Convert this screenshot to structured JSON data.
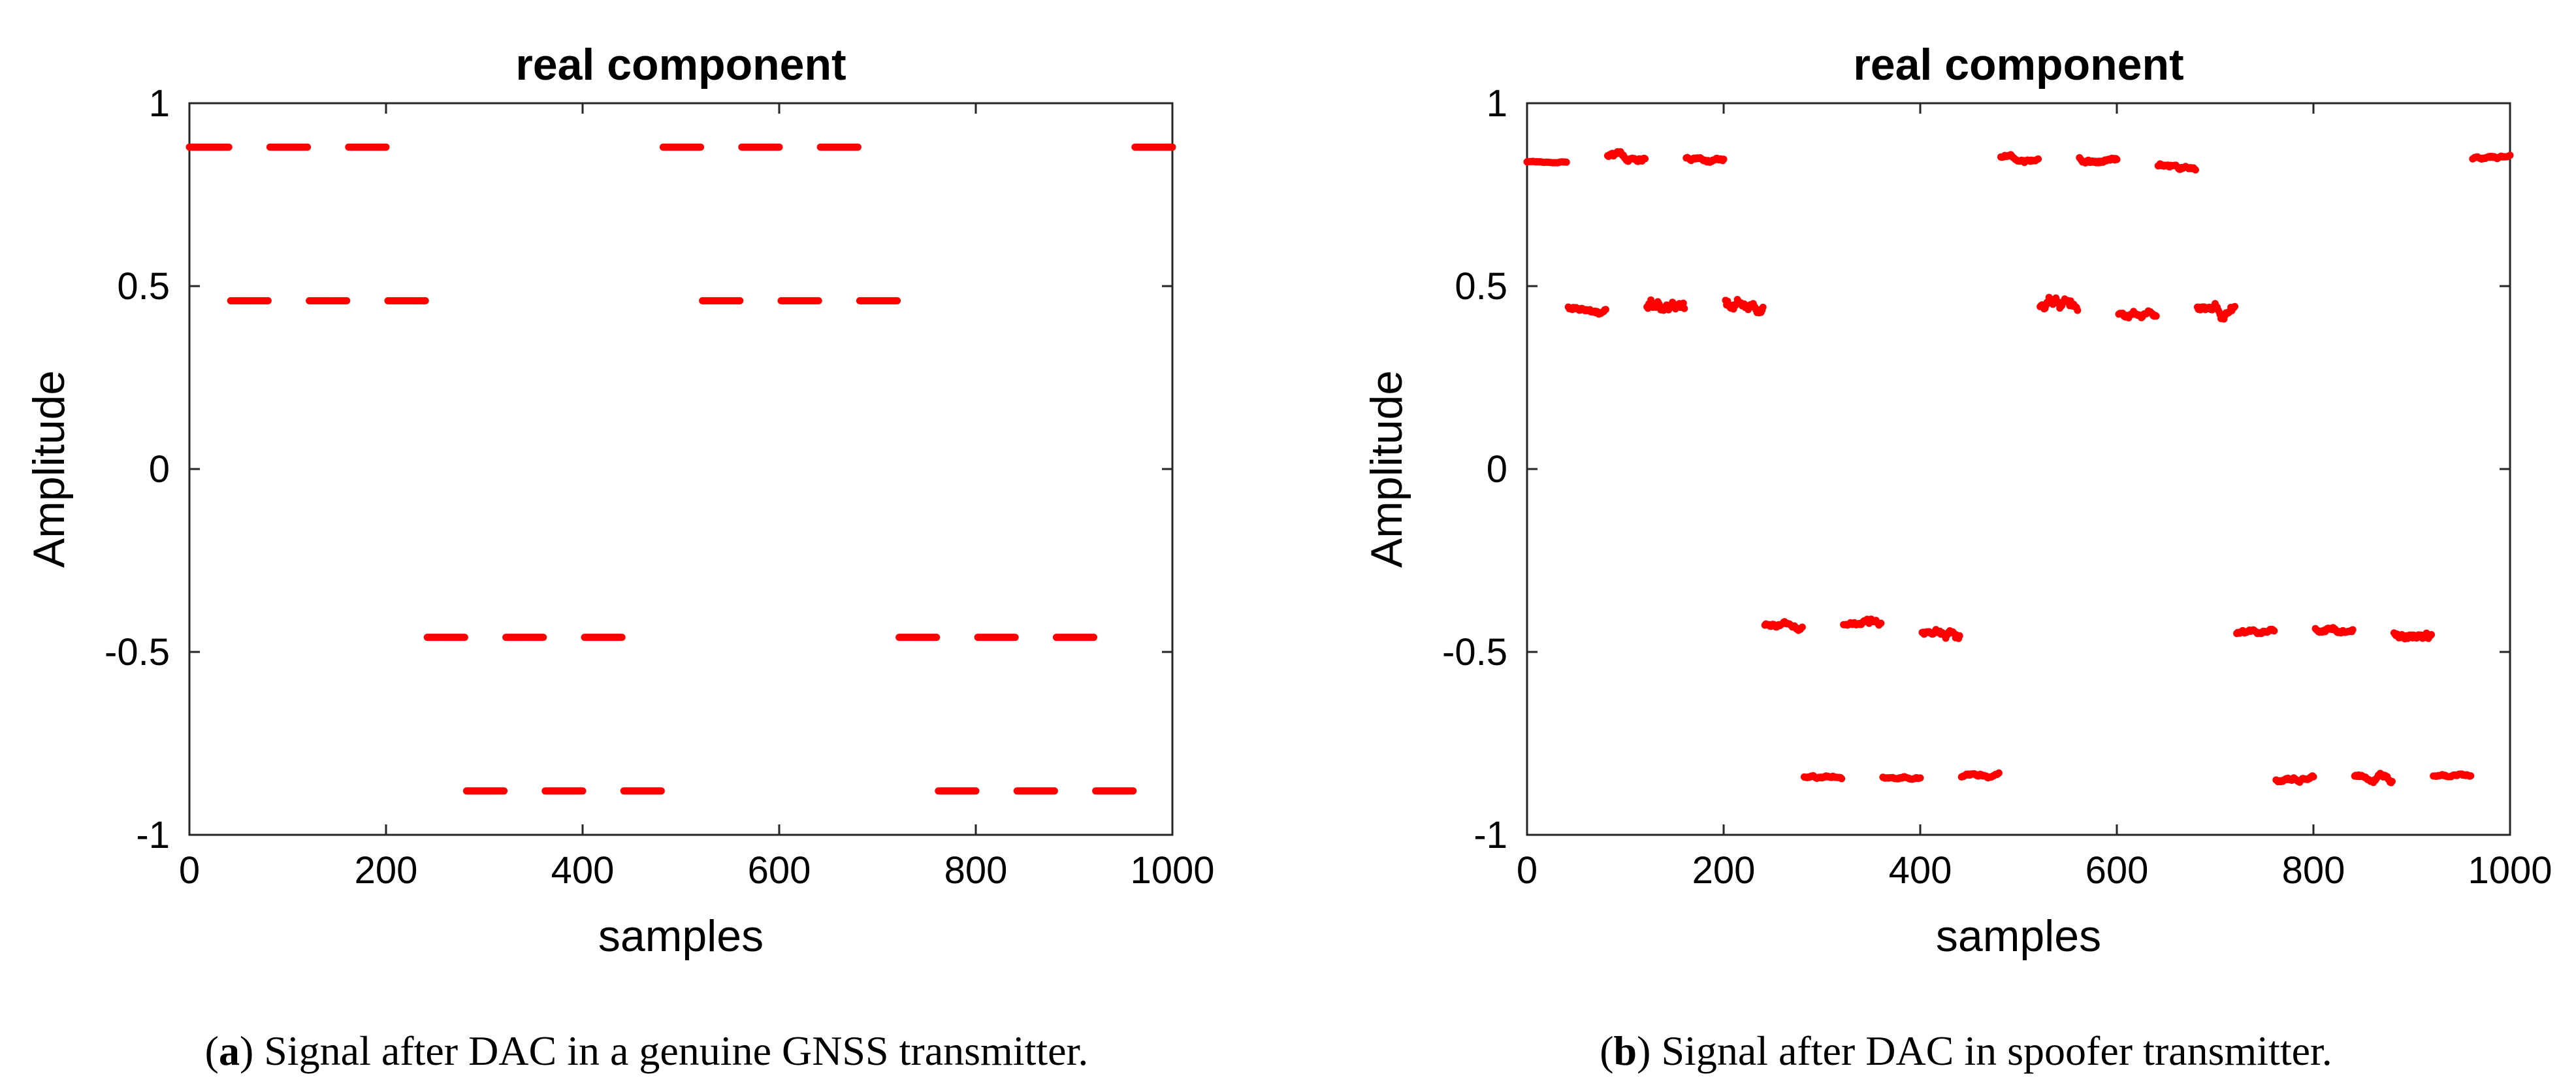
{
  "chart_data": [
    {
      "type": "scatter",
      "title": "real component",
      "xlabel": "samples",
      "ylabel": "Amplitude",
      "xlim": [
        0,
        1000
      ],
      "ylim": [
        -1,
        1
      ],
      "xticks": [
        0,
        200,
        400,
        600,
        800,
        1000
      ],
      "yticks": [
        -1,
        -0.5,
        0,
        0.5,
        1
      ],
      "xtick_labels": [
        "0",
        "200",
        "400",
        "600",
        "800",
        "1000"
      ],
      "ytick_labels": [
        "-1",
        "-0.5",
        "0",
        "0.5",
        "1"
      ],
      "marker_color": "#ff0000",
      "series": [
        {
          "name": "real component",
          "segments": [
            {
              "x_start": 0,
              "x_end": 42,
              "y": 0.88
            },
            {
              "x_start": 40,
              "x_end": 82,
              "y": 0.46
            },
            {
              "x_start": 80,
              "x_end": 122,
              "y": 0.88
            },
            {
              "x_start": 120,
              "x_end": 162,
              "y": 0.46
            },
            {
              "x_start": 160,
              "x_end": 202,
              "y": 0.88
            },
            {
              "x_start": 200,
              "x_end": 242,
              "y": 0.46
            },
            {
              "x_start": 240,
              "x_end": 282,
              "y": -0.46
            },
            {
              "x_start": 280,
              "x_end": 322,
              "y": -0.88
            },
            {
              "x_start": 320,
              "x_end": 362,
              "y": -0.46
            },
            {
              "x_start": 360,
              "x_end": 402,
              "y": -0.88
            },
            {
              "x_start": 400,
              "x_end": 442,
              "y": -0.46
            },
            {
              "x_start": 440,
              "x_end": 482,
              "y": -0.88
            },
            {
              "x_start": 480,
              "x_end": 522,
              "y": 0.88
            },
            {
              "x_start": 520,
              "x_end": 562,
              "y": 0.46
            },
            {
              "x_start": 560,
              "x_end": 602,
              "y": 0.88
            },
            {
              "x_start": 600,
              "x_end": 642,
              "y": 0.46
            },
            {
              "x_start": 640,
              "x_end": 682,
              "y": 0.88
            },
            {
              "x_start": 680,
              "x_end": 722,
              "y": 0.46
            },
            {
              "x_start": 720,
              "x_end": 762,
              "y": -0.46
            },
            {
              "x_start": 760,
              "x_end": 802,
              "y": -0.88
            },
            {
              "x_start": 800,
              "x_end": 842,
              "y": -0.46
            },
            {
              "x_start": 840,
              "x_end": 882,
              "y": -0.88
            },
            {
              "x_start": 880,
              "x_end": 922,
              "y": -0.46
            },
            {
              "x_start": 920,
              "x_end": 962,
              "y": -0.88
            },
            {
              "x_start": 960,
              "x_end": 1000,
              "y": 0.88
            }
          ]
        }
      ]
    },
    {
      "type": "scatter",
      "title": "real component",
      "xlabel": "samples",
      "ylabel": "Amplitude",
      "xlim": [
        0,
        1000
      ],
      "ylim": [
        -1,
        1
      ],
      "xticks": [
        0,
        200,
        400,
        600,
        800,
        1000
      ],
      "yticks": [
        -1,
        -0.5,
        0,
        0.5,
        1
      ],
      "xtick_labels": [
        "0",
        "200",
        "400",
        "600",
        "800",
        "1000"
      ],
      "ytick_labels": [
        "-1",
        "-0.5",
        "0",
        "0.5",
        "1"
      ],
      "marker_color": "#ff0000",
      "series": [
        {
          "name": "real component",
          "segments": [
            {
              "x_start": 0,
              "x_end": 42,
              "y": 0.84,
              "noise": 0.002
            },
            {
              "x_start": 40,
              "x_end": 82,
              "y": 0.44,
              "noise": 0.01
            },
            {
              "x_start": 80,
              "x_end": 122,
              "y": 0.85,
              "noise": 0.012
            },
            {
              "x_start": 120,
              "x_end": 162,
              "y": 0.44,
              "noise": 0.025
            },
            {
              "x_start": 160,
              "x_end": 202,
              "y": 0.85,
              "noise": 0.008
            },
            {
              "x_start": 200,
              "x_end": 242,
              "y": 0.46,
              "noise": 0.02
            },
            {
              "x_start": 240,
              "x_end": 282,
              "y": -0.43,
              "noise": 0.01
            },
            {
              "x_start": 280,
              "x_end": 322,
              "y": -0.84,
              "noise": 0.006
            },
            {
              "x_start": 320,
              "x_end": 362,
              "y": -0.43,
              "noise": 0.012
            },
            {
              "x_start": 360,
              "x_end": 402,
              "y": -0.84,
              "noise": 0.005
            },
            {
              "x_start": 400,
              "x_end": 442,
              "y": -0.44,
              "noise": 0.015
            },
            {
              "x_start": 440,
              "x_end": 482,
              "y": -0.84,
              "noise": 0.006
            },
            {
              "x_start": 480,
              "x_end": 522,
              "y": 0.85,
              "noise": 0.008
            },
            {
              "x_start": 520,
              "x_end": 562,
              "y": 0.44,
              "noise": 0.02
            },
            {
              "x_start": 560,
              "x_end": 602,
              "y": 0.85,
              "noise": 0.008
            },
            {
              "x_start": 600,
              "x_end": 642,
              "y": 0.42,
              "noise": 0.012
            },
            {
              "x_start": 640,
              "x_end": 682,
              "y": 0.83,
              "noise": 0.008
            },
            {
              "x_start": 680,
              "x_end": 722,
              "y": 0.44,
              "noise": 0.018
            },
            {
              "x_start": 720,
              "x_end": 762,
              "y": -0.45,
              "noise": 0.008
            },
            {
              "x_start": 760,
              "x_end": 802,
              "y": -0.85,
              "noise": 0.008
            },
            {
              "x_start": 800,
              "x_end": 842,
              "y": -0.44,
              "noise": 0.01
            },
            {
              "x_start": 840,
              "x_end": 882,
              "y": -0.84,
              "noise": 0.012
            },
            {
              "x_start": 880,
              "x_end": 922,
              "y": -0.44,
              "noise": 0.015
            },
            {
              "x_start": 920,
              "x_end": 962,
              "y": -0.84,
              "noise": 0.005
            },
            {
              "x_start": 960,
              "x_end": 1000,
              "y": 0.85,
              "noise": 0.006
            }
          ]
        }
      ]
    }
  ],
  "captions": [
    {
      "label": "a",
      "text": ") Signal after DAC in a genuine GNSS transmitter."
    },
    {
      "label": "b",
      "text": ") Signal after DAC in spoofer transmitter."
    }
  ]
}
